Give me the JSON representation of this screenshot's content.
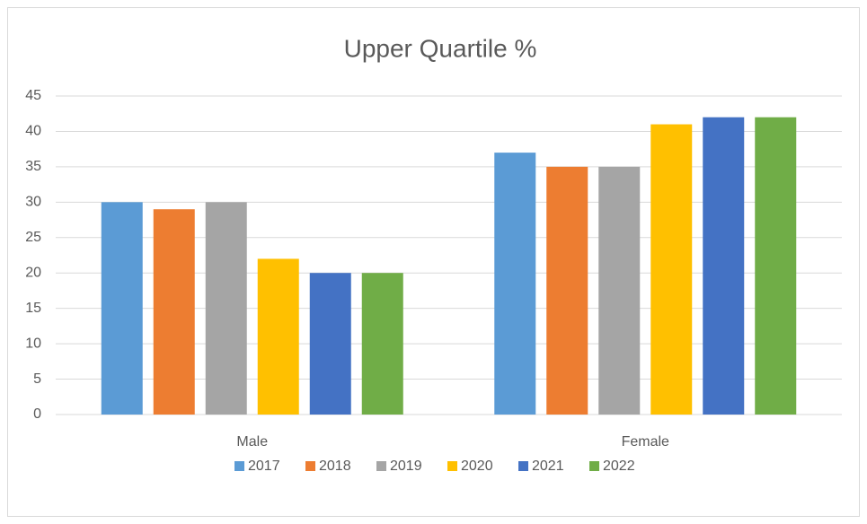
{
  "chart_data": {
    "type": "bar",
    "title": "Upper Quartile %",
    "categories": [
      "Male",
      "Female"
    ],
    "series": [
      {
        "name": "2017",
        "color": "#5b9bd5",
        "values": [
          30,
          37
        ]
      },
      {
        "name": "2018",
        "color": "#ed7d31",
        "values": [
          29,
          35
        ]
      },
      {
        "name": "2019",
        "color": "#a5a5a5",
        "values": [
          30,
          35
        ]
      },
      {
        "name": "2020",
        "color": "#ffc000",
        "values": [
          22,
          41
        ]
      },
      {
        "name": "2021",
        "color": "#4472c4",
        "values": [
          20,
          42
        ]
      },
      {
        "name": "2022",
        "color": "#70ad47",
        "values": [
          20,
          42
        ]
      }
    ],
    "ylim": [
      0,
      45
    ],
    "yticks": [
      0,
      5,
      10,
      15,
      20,
      25,
      30,
      35,
      40,
      45
    ],
    "grid": true,
    "legend": "bottom"
  }
}
